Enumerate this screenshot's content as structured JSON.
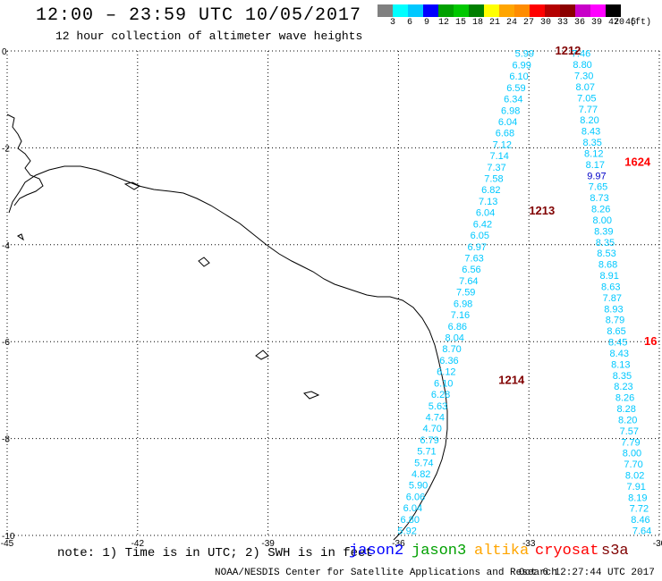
{
  "header": {
    "title": "12:00 – 23:59 UTC 10/05/2017",
    "subtitle": "12 hour collection of altimeter wave heights"
  },
  "color_scale": {
    "labels": [
      "3",
      "6",
      "9",
      "12",
      "15",
      "18",
      "21",
      "24",
      "27",
      "30",
      "33",
      "36",
      "39",
      "42",
      "45",
      "70 (ft)"
    ],
    "colors": [
      "#808080",
      "#00ffff",
      "#00c8ff",
      "#0000ff",
      "#00a000",
      "#00c800",
      "#008000",
      "#ffff00",
      "#ffa500",
      "#ff8c00",
      "#ff0000",
      "#b40000",
      "#8b0000",
      "#c800c8",
      "#ff00ff",
      "#000000"
    ]
  },
  "axes": {
    "x_ticks": [
      "-45",
      "-42",
      "-39",
      "-36",
      "-33",
      "-30"
    ],
    "y_ticks": [
      "0",
      "-2",
      "-4",
      "-6",
      "-8",
      "-10"
    ]
  },
  "tracks": [
    {
      "name": "track-1",
      "color": "#00c8ff",
      "start": [
        -33.1,
        -0.05
      ],
      "end": [
        -35.8,
        -9.9
      ],
      "time_labels": [
        {
          "text": "1212",
          "at": [
            -32.1,
            -0.0
          ],
          "color": "#800000"
        },
        {
          "text": "1213",
          "at": [
            -32.7,
            -3.3
          ],
          "color": "#800000"
        },
        {
          "text": "1214",
          "at": [
            -33.4,
            -6.8
          ],
          "color": "#800000"
        }
      ],
      "values": [
        "5.99",
        "6.99",
        "6.10",
        "6.59",
        "6.34",
        "6.98",
        "6.04",
        "6.68",
        "7.12",
        "7.14",
        "7.37",
        "7.58",
        "6.82",
        "7.13",
        "6.04",
        "6.42",
        "6.05",
        "6.97",
        "7.63",
        "6.56",
        "7.64",
        "7.59",
        "6.98",
        "7.16",
        "6.86",
        "8.04",
        "8.70",
        "6.36",
        "6.12",
        "6.10",
        "6.28",
        "5.63",
        "4.74",
        "4.70",
        "6.79",
        "5.71",
        "5.74",
        "4.82",
        "5.90",
        "6.06",
        "6.04",
        "6.80",
        "5.92"
      ]
    },
    {
      "name": "track-2",
      "color": "#00c8ff",
      "start": [
        -31.8,
        -0.05
      ],
      "end": [
        -30.4,
        -9.9
      ],
      "time_labels": [
        {
          "text": "1624",
          "at": [
            -30.5,
            -2.3
          ],
          "color": "#ff0000"
        },
        {
          "text": "16",
          "at": [
            -30.2,
            -6.0
          ],
          "color": "#ff0000"
        }
      ],
      "values": [
        "7.46",
        "8.80",
        "7.30",
        "8.07",
        "7.05",
        "7.77",
        "8.20",
        "8.43",
        "8.35",
        "8.12",
        "8.17",
        "9.97",
        "7.65",
        "8.73",
        "8.26",
        "8.00",
        "8.39",
        "8.35",
        "8.53",
        "8.68",
        "8.91",
        "8.63",
        "7.87",
        "8.93",
        "8.79",
        "8.65",
        "8.45",
        "8.43",
        "8.13",
        "8.35",
        "8.23",
        "8.26",
        "8.28",
        "8.20",
        "7.57",
        "7.79",
        "8.00",
        "7.70",
        "8.02",
        "7.91",
        "8.19",
        "7.72",
        "8.46",
        "7.64"
      ],
      "highlight": {
        "index": 11,
        "color": "#0000c8"
      }
    }
  ],
  "legend": {
    "note": "note: 1) Time is in UTC; 2) SWH is in feet",
    "satellites": [
      {
        "name": "jason2",
        "color": "#0000ff"
      },
      {
        "name": "jason3",
        "color": "#00a000"
      },
      {
        "name": "altika",
        "color": "#ffa500"
      },
      {
        "name": "cryosat",
        "color": "#ff0000"
      },
      {
        "name": "s3a",
        "color": "#800000"
      }
    ]
  },
  "footer": {
    "credit": "NOAA/NESDIS Center for Satellite Applications and Research",
    "timestamp": "Oct  6 12:27:44 UTC 2017"
  }
}
